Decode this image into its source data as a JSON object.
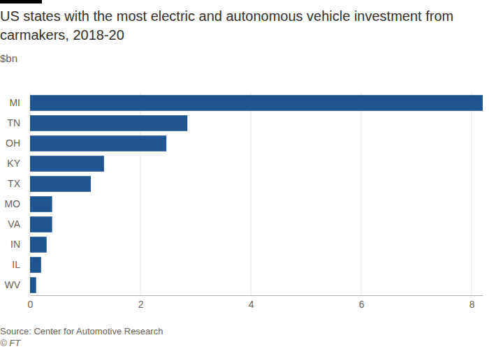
{
  "chart_data": {
    "type": "bar",
    "orientation": "horizontal",
    "title": "US states with the most electric and autonomous vehicle investment from carmakers, 2018-20",
    "subtitle": "$bn",
    "source": "Source: Center for Automotive Research",
    "credit": "© FT",
    "categories": [
      "MI",
      "TN",
      "OH",
      "KY",
      "TX",
      "MO",
      "VA",
      "IN",
      "IL",
      "WV"
    ],
    "values": [
      8.2,
      2.85,
      2.47,
      1.34,
      1.1,
      0.4,
      0.4,
      0.3,
      0.2,
      0.11
    ],
    "color": "#1f5591",
    "xlim": [
      0,
      8.2
    ],
    "xticks": [
      0,
      2,
      4,
      6,
      8
    ],
    "grid": true,
    "data_labels": false
  }
}
